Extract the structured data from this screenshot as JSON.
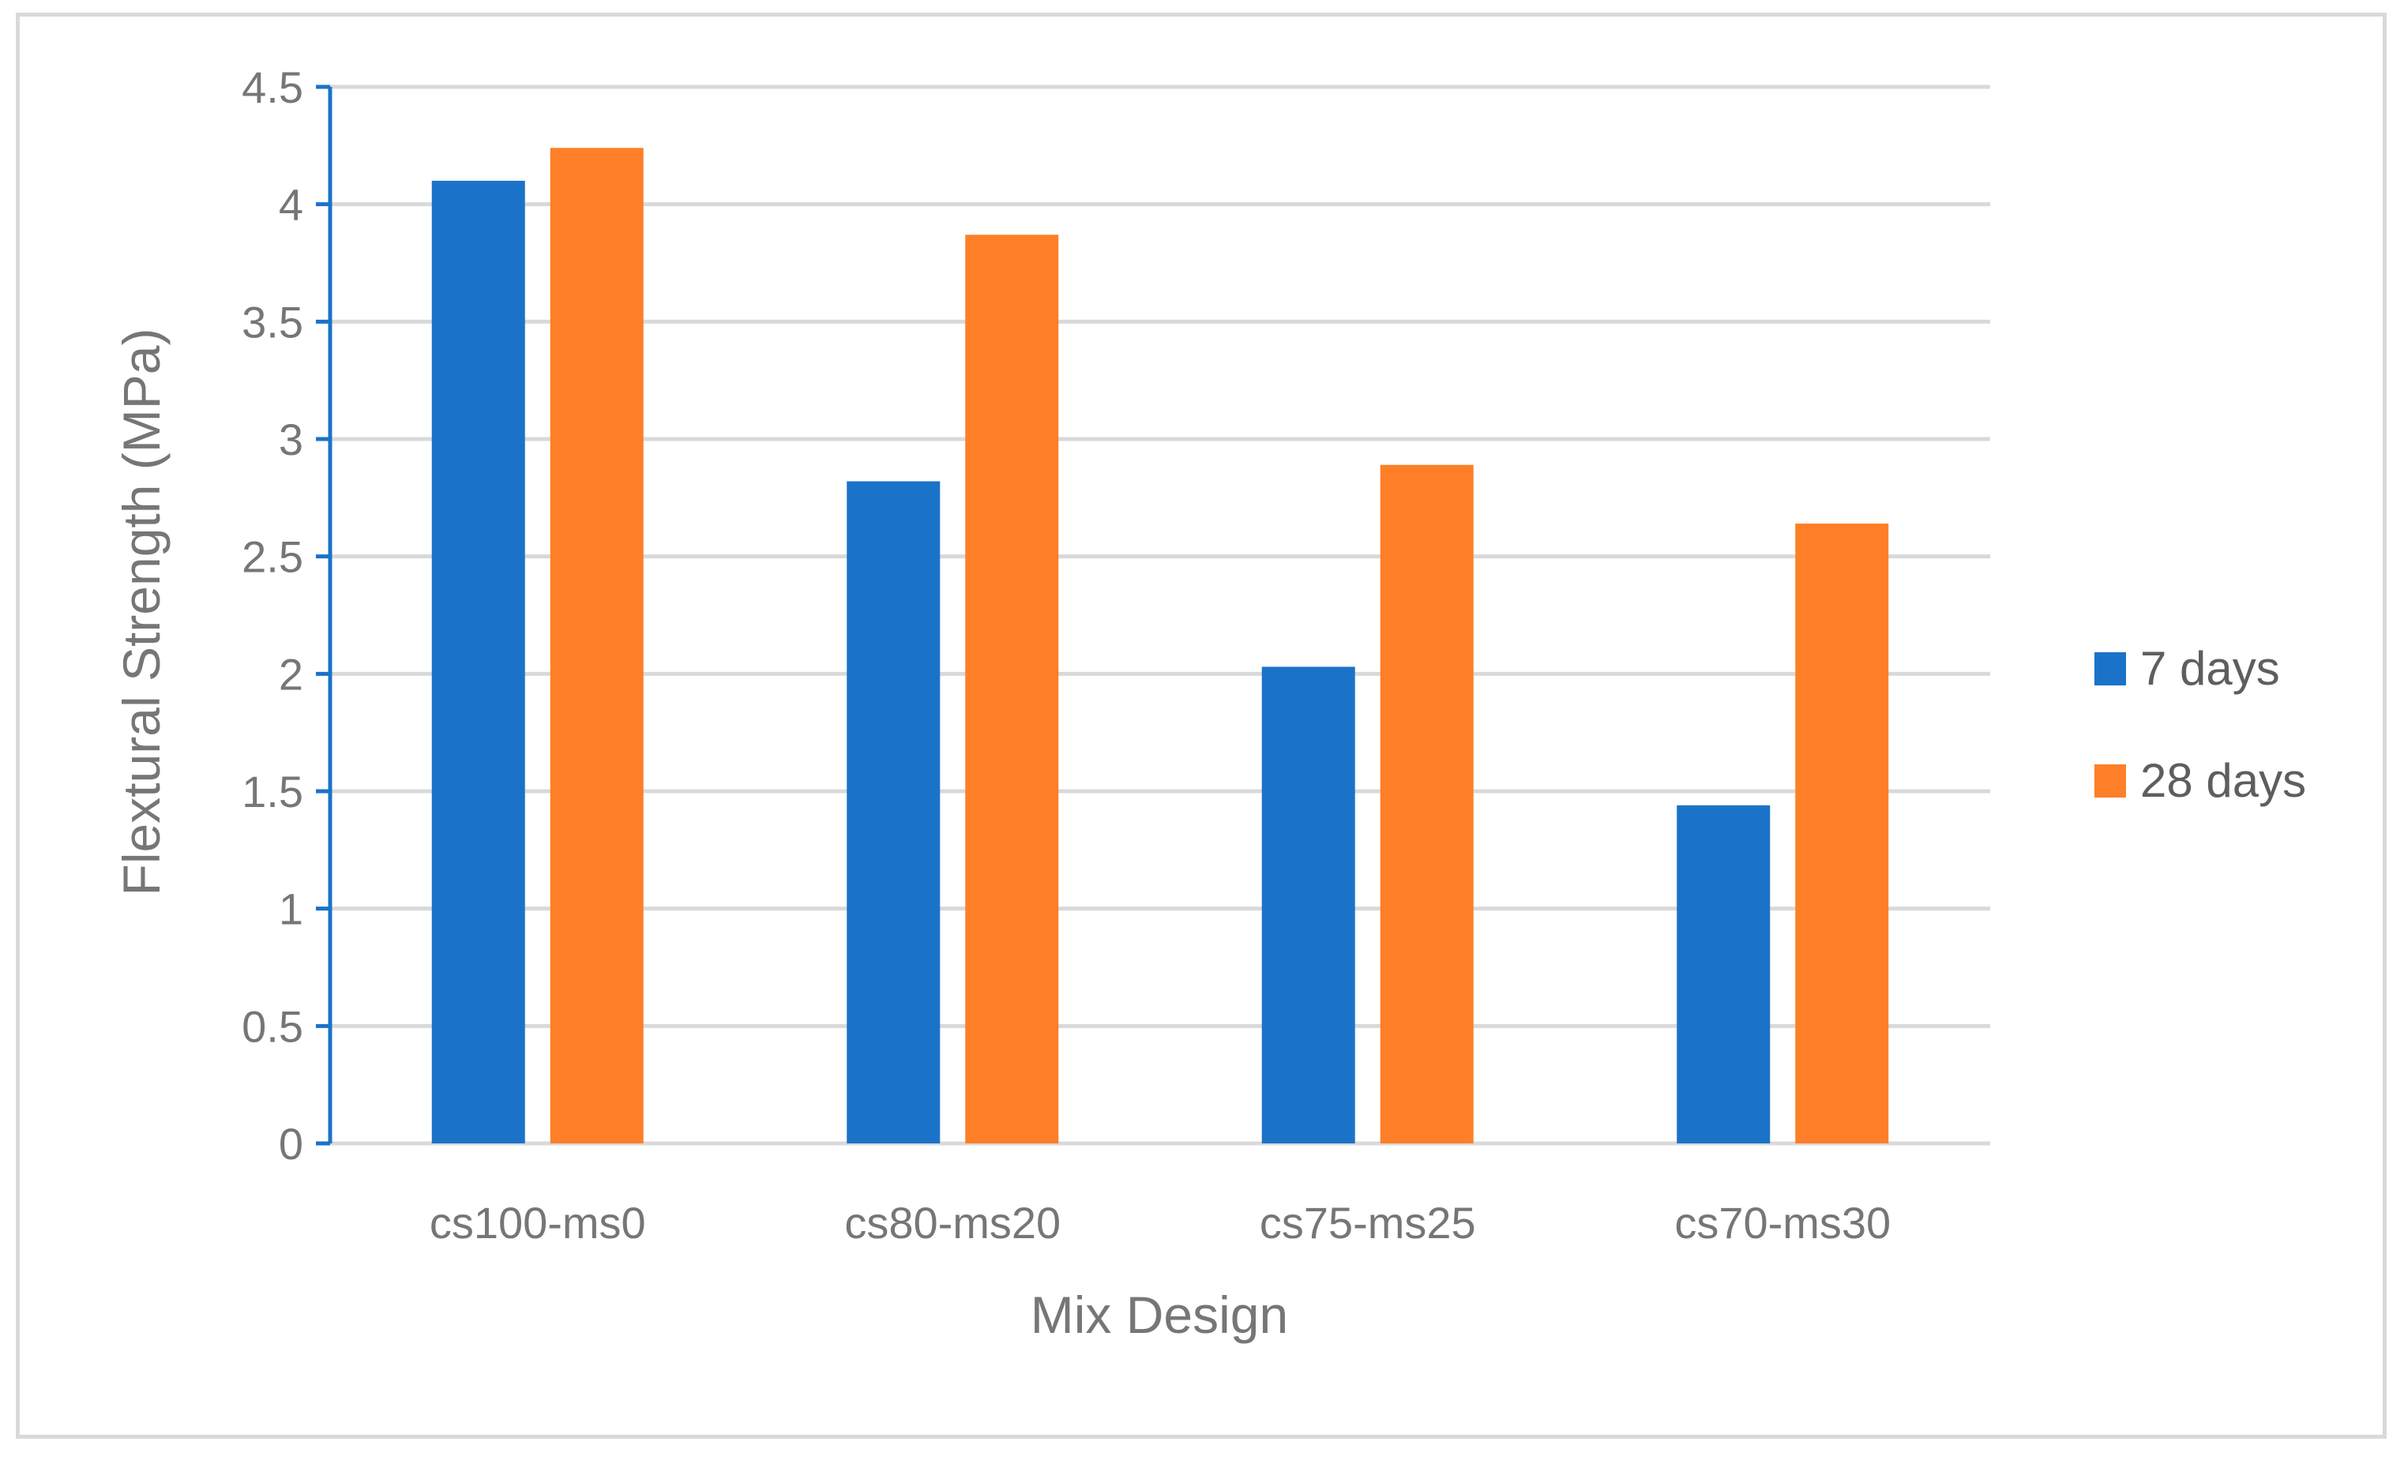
{
  "chart_data": {
    "type": "bar",
    "title": "",
    "xlabel": "Mix Design",
    "ylabel": "Flextural Strength (MPa)",
    "categories": [
      "cs100-ms0",
      "cs80-ms20",
      "cs75-ms25",
      "cs70-ms30"
    ],
    "series": [
      {
        "name": "7 days",
        "values": [
          4.1,
          2.82,
          2.03,
          1.44
        ],
        "color": "#1a73c8"
      },
      {
        "name": "28 days",
        "values": [
          4.24,
          3.87,
          2.89,
          2.64
        ],
        "color": "#fe7f27"
      }
    ],
    "ylim": [
      0,
      4.5
    ],
    "yticks": [
      "0",
      "0.5",
      "1",
      "1.5",
      "2",
      "2.5",
      "3",
      "3.5",
      "4",
      "4.5"
    ],
    "ytick_values": [
      0,
      0.5,
      1,
      1.5,
      2,
      2.5,
      3,
      3.5,
      4,
      4.5
    ],
    "grid": true,
    "legend_position": "right",
    "colors": {
      "grid": "#d9d9d9",
      "axis": "#1a73c8",
      "text": "#767676",
      "frame": "#d9d9d9"
    }
  }
}
